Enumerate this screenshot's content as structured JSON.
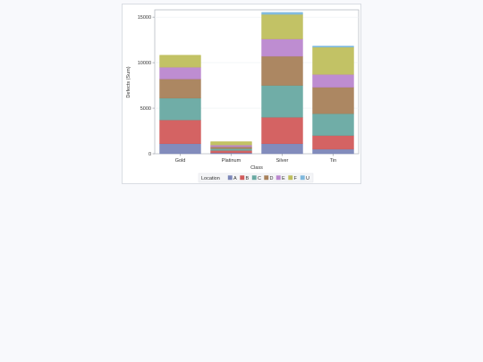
{
  "chart_data": {
    "type": "bar",
    "stacked": true,
    "xlabel": "Class",
    "ylabel": "Defects (Sum)",
    "ylim": [
      0,
      15800
    ],
    "yticks": [
      0,
      5000,
      10000,
      15000
    ],
    "ytick_labels": [
      "0",
      "5000",
      "10000",
      "15000"
    ],
    "categories": [
      "Gold",
      "Platinum",
      "Silver",
      "Tin"
    ],
    "legend": {
      "title": "Location",
      "placement": "bottom"
    },
    "series": [
      {
        "name": "A",
        "color": "#7b86b8",
        "values": [
          1100,
          100,
          1100,
          500
        ]
      },
      {
        "name": "B",
        "color": "#d25b5b",
        "values": [
          2600,
          250,
          2900,
          1500
        ]
      },
      {
        "name": "C",
        "color": "#68a9a2",
        "values": [
          2400,
          200,
          3500,
          2400
        ]
      },
      {
        "name": "D",
        "color": "#a8815a",
        "values": [
          2100,
          220,
          3200,
          2900
        ]
      },
      {
        "name": "E",
        "color": "#bb87cf",
        "values": [
          1300,
          180,
          1900,
          1400
        ]
      },
      {
        "name": "F",
        "color": "#bfbf5d",
        "values": [
          1300,
          350,
          2700,
          3000
        ]
      },
      {
        "name": "U",
        "color": "#7fb9de",
        "values": [
          0,
          0,
          200,
          100
        ]
      }
    ]
  }
}
